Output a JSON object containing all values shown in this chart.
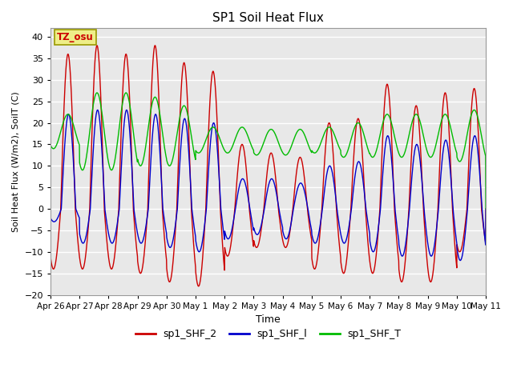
{
  "title": "SP1 Soil Heat Flux",
  "xlabel": "Time",
  "ylabel": "Soil Heat Flux (W/m2), SoilT (C)",
  "ylim": [
    -20,
    42
  ],
  "yticks": [
    -20,
    -15,
    -10,
    -5,
    0,
    5,
    10,
    15,
    20,
    25,
    30,
    35,
    40
  ],
  "plot_bg": "#e8e8e8",
  "fig_bg": "#ffffff",
  "line_colors": {
    "sp1_SHF_2": "#cc0000",
    "sp1_SHF_l": "#0000cc",
    "sp1_SHF_T": "#00bb00"
  },
  "tz_text": "TZ_osu",
  "x_tick_labels": [
    "Apr 26",
    "Apr 27",
    "Apr 28",
    "Apr 29",
    "Apr 30",
    "May 1",
    "May 2",
    "May 3",
    "May 4",
    "May 5",
    "May 6",
    "May 7",
    "May 8",
    "May 9",
    "May 10",
    "May 11"
  ],
  "n_days": 15,
  "pts_per_day": 144
}
